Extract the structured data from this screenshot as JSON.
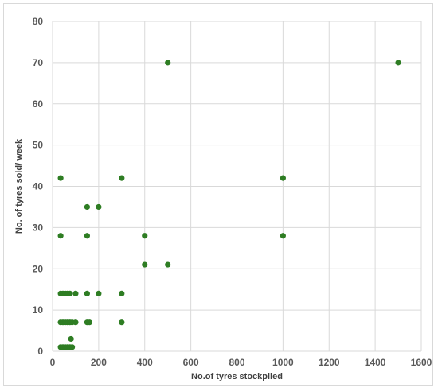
{
  "chart_data": {
    "type": "scatter",
    "title": "",
    "xlabel": "No.of tyres stockpiled",
    "ylabel": "No. of tyres sold/ week",
    "xlim": [
      0,
      1600
    ],
    "ylim": [
      0,
      80
    ],
    "x_ticks": [
      "0",
      "200",
      "400",
      "600",
      "800",
      "1000",
      "1200",
      "1400",
      "1600"
    ],
    "y_ticks": [
      "0",
      "10",
      "20",
      "30",
      "40",
      "50",
      "60",
      "70",
      "80"
    ],
    "grid": true,
    "legend": "none",
    "marker_color": "#2e7d23",
    "points": [
      {
        "x": 500,
        "y": 70
      },
      {
        "x": 1500,
        "y": 70
      },
      {
        "x": 35,
        "y": 42
      },
      {
        "x": 300,
        "y": 42
      },
      {
        "x": 1000,
        "y": 42
      },
      {
        "x": 150,
        "y": 35
      },
      {
        "x": 200,
        "y": 35
      },
      {
        "x": 35,
        "y": 28
      },
      {
        "x": 150,
        "y": 28
      },
      {
        "x": 400,
        "y": 28
      },
      {
        "x": 1000,
        "y": 28
      },
      {
        "x": 400,
        "y": 21
      },
      {
        "x": 500,
        "y": 21
      },
      {
        "x": 35,
        "y": 14
      },
      {
        "x": 45,
        "y": 14
      },
      {
        "x": 55,
        "y": 14
      },
      {
        "x": 65,
        "y": 14
      },
      {
        "x": 75,
        "y": 14
      },
      {
        "x": 100,
        "y": 14
      },
      {
        "x": 150,
        "y": 14
      },
      {
        "x": 200,
        "y": 14
      },
      {
        "x": 300,
        "y": 14
      },
      {
        "x": 35,
        "y": 7
      },
      {
        "x": 45,
        "y": 7
      },
      {
        "x": 55,
        "y": 7
      },
      {
        "x": 65,
        "y": 7
      },
      {
        "x": 75,
        "y": 7
      },
      {
        "x": 85,
        "y": 7
      },
      {
        "x": 100,
        "y": 7
      },
      {
        "x": 150,
        "y": 7
      },
      {
        "x": 160,
        "y": 7
      },
      {
        "x": 300,
        "y": 7
      },
      {
        "x": 80,
        "y": 3
      },
      {
        "x": 35,
        "y": 1
      },
      {
        "x": 45,
        "y": 1
      },
      {
        "x": 55,
        "y": 1
      },
      {
        "x": 65,
        "y": 1
      },
      {
        "x": 75,
        "y": 1
      },
      {
        "x": 85,
        "y": 1
      }
    ]
  }
}
